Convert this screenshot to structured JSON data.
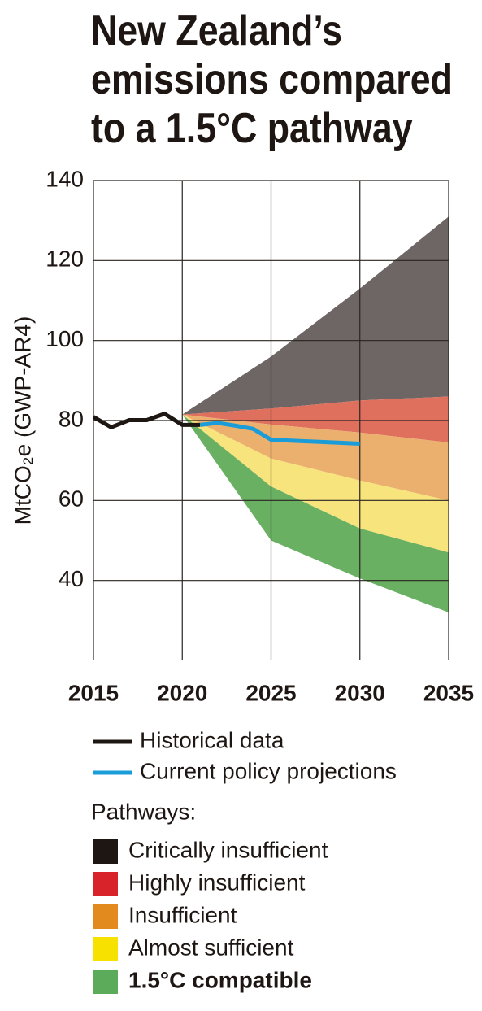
{
  "chart_data": {
    "type": "area-range-line",
    "title": "New Zealand’s emissions compared to a 1.5°C pathway",
    "y_label": "MtCO₂e (GWP-AR4)",
    "xlim": [
      2015,
      2035
    ],
    "xticks": [
      2015,
      2020,
      2025,
      2030,
      2035
    ],
    "ylim": [
      20,
      140
    ],
    "yticks": [
      40,
      60,
      80,
      100,
      120,
      140
    ],
    "grid": true,
    "lines": [
      {
        "name": "Historical data",
        "color": "#1e1612",
        "x": [
          2015,
          2016,
          2017,
          2018,
          2019,
          2020,
          2021
        ],
        "values": [
          80.9,
          78.3,
          80.1,
          80.1,
          81.7,
          78.9,
          78.9
        ]
      },
      {
        "name": "Current policy projections",
        "color": "#1a9cd8",
        "x": [
          2021,
          2022,
          2023,
          2024,
          2025,
          2026,
          2027,
          2028,
          2029,
          2030
        ],
        "values": [
          78.9,
          79.4,
          78.7,
          77.9,
          75.2,
          75.0,
          74.8,
          74.6,
          74.4,
          74.2
        ]
      }
    ],
    "legend_heading": "Pathways:",
    "band_x": [
      2020,
      2025,
      2030,
      2035
    ],
    "bands": [
      {
        "name": "Critically insufficient",
        "color": "#1e1612",
        "band_color": "#6d6665",
        "upper": [
          81.5,
          96,
          113,
          131
        ],
        "lower": [
          81.5,
          83,
          85,
          86
        ]
      },
      {
        "name": "Highly insufficient",
        "color": "#d9232a",
        "band_color": "#e0705e",
        "upper": [
          81.5,
          83,
          85,
          86
        ],
        "lower": [
          81.5,
          79,
          77,
          74.5
        ]
      },
      {
        "name": "Insufficient",
        "color": "#e38a1e",
        "band_color": "#ebb06e",
        "upper": [
          81.5,
          79,
          77,
          74.5
        ],
        "lower": [
          81.5,
          70.5,
          65,
          60
        ]
      },
      {
        "name": "Almost sufficient",
        "color": "#f7e100",
        "band_color": "#f8e47c",
        "upper": [
          81.5,
          70.5,
          65,
          60
        ],
        "lower": [
          81.5,
          63.5,
          53,
          47
        ]
      },
      {
        "name": "1.5°C compatible",
        "color": "#5cab5a",
        "band_color": "#6ab063",
        "upper": [
          81.5,
          63.5,
          53,
          47
        ],
        "lower": [
          81.5,
          50,
          40.5,
          32
        ]
      }
    ]
  }
}
